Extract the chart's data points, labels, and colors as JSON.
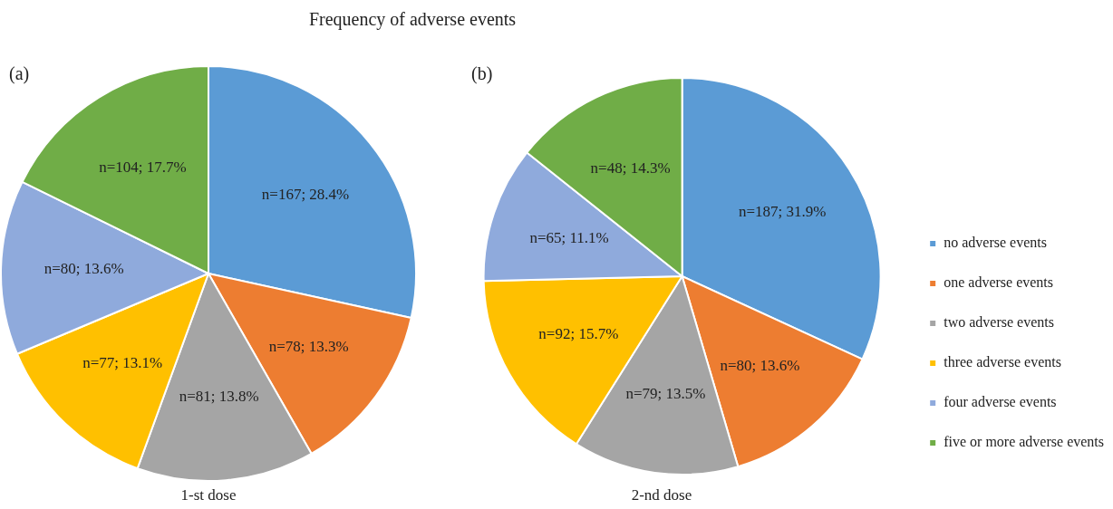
{
  "chart_data": [
    {
      "type": "pie",
      "title": "Frequency of adverse events",
      "categories": [
        null,
        null,
        null,
        null,
        null,
        null
      ],
      "values": [
        28.4,
        13.3,
        13.8,
        13.1,
        13.6,
        17.7
      ],
      "value_labels": [
        "n=167; 28.4%",
        "n=78; 13.3%",
        "n=81; 13.8%",
        "n=77; 13.1%",
        "n=80; 13.6%",
        "n=104; 17.7%"
      ],
      "colors": [
        "#5b9bd5",
        "#ed7d31",
        "#a5a5a5",
        "#ffc000",
        "#8faadc",
        "#70ad47"
      ],
      "annotations": [
        "(a)",
        "1-st dose"
      ],
      "legend": false
    },
    {
      "type": "pie",
      "categories": [
        "no adverse events",
        "one adverse events",
        "two adverse events",
        "three adverse events",
        "four adverse events",
        "five or more adverse events"
      ],
      "values": [
        31.9,
        13.6,
        13.5,
        15.7,
        11.1,
        14.3
      ],
      "value_labels": [
        "n=187; 31.9%",
        "n=80; 13.6%",
        "n=79; 13.5%",
        "n=92; 15.7%",
        "n=65; 11.1%",
        "n=48; 14.3%"
      ],
      "colors": [
        "#5b9bd5",
        "#ed7d31",
        "#a5a5a5",
        "#ffc000",
        "#8faadc",
        "#70ad47"
      ],
      "annotations": [
        "(b)",
        "2-nd dose"
      ],
      "legend": "right"
    }
  ]
}
